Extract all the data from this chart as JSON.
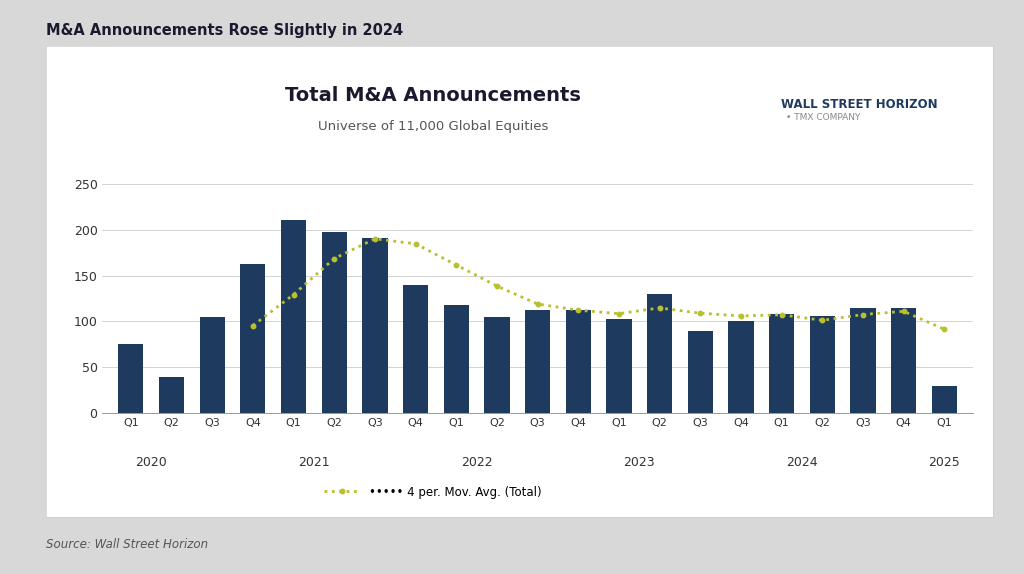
{
  "title": "Total M&A Announcements",
  "subtitle": "Universe of 11,000 Global Equities",
  "super_title": "M&A Announcements Rose Slightly in 2024",
  "source": "Source: Wall Street Horizon",
  "bar_color": "#1e3a5f",
  "outer_bg": "#d8d8d8",
  "chart_bg": "#ffffff",
  "moving_avg_color": "#b8c030",
  "bars": [
    75,
    40,
    105,
    162,
    210,
    197,
    191,
    140,
    118,
    105,
    113,
    113,
    103,
    130,
    90,
    101,
    108,
    106,
    115,
    115,
    30
  ],
  "labels": [
    "Q1",
    "Q2",
    "Q3",
    "Q4",
    "Q1",
    "Q2",
    "Q3",
    "Q4",
    "Q1",
    "Q2",
    "Q3",
    "Q4",
    "Q1",
    "Q2",
    "Q3",
    "Q4",
    "Q1",
    "Q2",
    "Q3",
    "Q4",
    "Q1"
  ],
  "year_labels": [
    "2020",
    "2021",
    "2022",
    "2023",
    "2024",
    "2025"
  ],
  "year_positions": [
    1.5,
    5.5,
    9.5,
    13.5,
    17.5,
    21
  ],
  "ylim": [
    0,
    275
  ],
  "yticks": [
    0,
    50,
    100,
    150,
    200,
    250
  ],
  "legend_label": "••••• 4 per. Mov. Avg. (Total)"
}
